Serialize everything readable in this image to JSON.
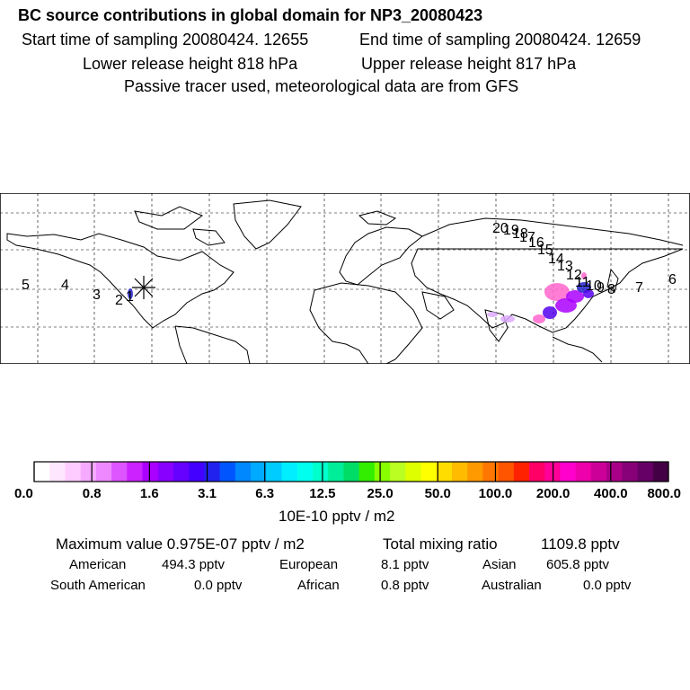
{
  "header": {
    "title": "BC  source contributions in global domain for NP3_20080423",
    "start_label": "Start time of sampling 20080424. 12655",
    "end_label": "End time of sampling 20080424. 12659",
    "lower_label": "Lower release height  818 hPa",
    "upper_label": "Upper release height  817 hPa",
    "tracer_note": "Passive tracer used, meteorological data are from GFS"
  },
  "map": {
    "trajectory_labels": [
      "5",
      "4",
      "3",
      "2",
      "1",
      "7",
      "6",
      "14",
      "13",
      "12",
      "11",
      "10",
      "9",
      "8",
      "15",
      "16",
      "17",
      "18",
      "19",
      "20"
    ],
    "receptor_marker": "x-cross",
    "plume_colors": [
      "#ff66cc",
      "#aa00ff",
      "#5500ee",
      "#2222cc",
      "#ddaaff"
    ]
  },
  "colorbar": {
    "colors": [
      "#ffffff",
      "#ffe6ff",
      "#ffccff",
      "#f5aaff",
      "#ee88ff",
      "#dd55ff",
      "#cc22ff",
      "#aa00ff",
      "#8800ff",
      "#6600ff",
      "#4400ff",
      "#2222ee",
      "#0055ff",
      "#0088ff",
      "#00aaff",
      "#00ccff",
      "#00eeff",
      "#00ffee",
      "#00ffcc",
      "#00ee99",
      "#00dd66",
      "#33ee00",
      "#88ff00",
      "#bbff22",
      "#ddff00",
      "#ffff00",
      "#ffdd00",
      "#ffbb00",
      "#ff9900",
      "#ff7700",
      "#ff5500",
      "#ff2200",
      "#ff0066",
      "#ff0099",
      "#ff00cc",
      "#ee00aa",
      "#cc0099",
      "#aa0088",
      "#880077",
      "#660066",
      "#440044"
    ],
    "tick_labels": [
      "0.0",
      "0.8",
      "1.6",
      "3.1",
      "6.3",
      "12.5",
      "25.0",
      "50.0",
      "100.0",
      "200.0",
      "400.0",
      "800.0"
    ],
    "units": "10E-10 pptv / m2"
  },
  "stats": {
    "max_label": "Maximum value  0.975E-07 pptv / m2",
    "total_label": "Total mixing ratio",
    "total_value": "1109.8 pptv",
    "american_label": "American",
    "american_value": "494.3 pptv",
    "european_label": "European",
    "european_value": "8.1 pptv",
    "asian_label": "Asian",
    "asian_value": "605.8 pptv",
    "south_american_label": "South American",
    "south_american_value": "0.0 pptv",
    "african_label": "African",
    "african_value": "0.8 pptv",
    "australian_label": "Australian",
    "australian_value": "0.0 pptv"
  }
}
